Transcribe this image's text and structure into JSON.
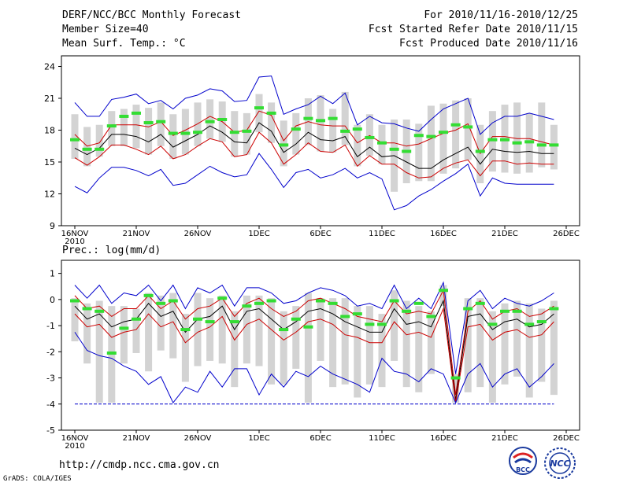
{
  "header": {
    "title": "DERF/NCC/BCC Monthly Forecast",
    "member_size": "Member Size=40",
    "variable": "Mean Surf. Temp.: °C",
    "period": "For 2010/11/16-2010/12/25",
    "start_date": "Fcst Started Refer Date 2010/11/15",
    "produced_date": "Fcst Produced Date 2010/11/16"
  },
  "footer": {
    "url": "http://cmdp.ncc.cma.gov.cn",
    "credit": "GrADS: COLA/IGES",
    "logo_left_text": "BCC",
    "logo_right_text": "NCC"
  },
  "colors": {
    "upper_lower_envelope": "#0000cc",
    "spread_band": "#cc0000",
    "ensemble_mean": "#000000",
    "box": "#d3d3d3",
    "marker": "#33dd33",
    "baseline": "#0000cc"
  },
  "chart_data": [
    {
      "type": "line",
      "title": "Mean Surf. Temp.: °C",
      "ylim": [
        9,
        25
      ],
      "yticks": [
        9,
        12,
        15,
        18,
        21,
        24
      ],
      "xticks": [
        {
          "day": 0,
          "label": "16NOV"
        },
        {
          "day": 5,
          "label": "21NOV"
        },
        {
          "day": 10,
          "label": "26NOV"
        },
        {
          "day": 15,
          "label": "1DEC"
        },
        {
          "day": 20,
          "label": "6DEC"
        },
        {
          "day": 25,
          "label": "11DEC"
        },
        {
          "day": 30,
          "label": "16DEC"
        },
        {
          "day": 35,
          "label": "21DEC"
        },
        {
          "day": 40,
          "label": "26DEC"
        }
      ],
      "year_label": "2010",
      "days": [
        0,
        1,
        2,
        3,
        4,
        5,
        6,
        7,
        8,
        9,
        10,
        11,
        12,
        13,
        14,
        15,
        16,
        17,
        18,
        19,
        20,
        21,
        22,
        23,
        24,
        25,
        26,
        27,
        28,
        29,
        30,
        31,
        32,
        33,
        34,
        35,
        36,
        37,
        38,
        39
      ],
      "series": [
        {
          "name": "max",
          "values": [
            20.6,
            19.3,
            19.3,
            20.9,
            21.1,
            21.4,
            20.5,
            20.8,
            20.0,
            21.0,
            21.3,
            21.9,
            21.7,
            20.7,
            20.8,
            23.0,
            23.1,
            19.5,
            20.0,
            20.4,
            21.2,
            20.5,
            21.5,
            18.5,
            19.3,
            18.7,
            18.6,
            18.2,
            17.9,
            19.0,
            20.0,
            20.5,
            21.0,
            17.6,
            18.7,
            19.3,
            19.3,
            19.6,
            19.3,
            19.0
          ]
        },
        {
          "name": "upper",
          "values": [
            17.6,
            16.5,
            16.8,
            18.5,
            18.5,
            18.5,
            18.3,
            18.8,
            17.5,
            18.0,
            18.6,
            19.3,
            18.8,
            17.8,
            18.0,
            19.8,
            19.4,
            17.0,
            18.4,
            18.8,
            18.5,
            18.4,
            18.4,
            16.8,
            17.5,
            16.8,
            16.8,
            16.5,
            16.7,
            17.2,
            17.7,
            18.0,
            18.6,
            15.8,
            17.4,
            17.4,
            17.2,
            17.2,
            16.9,
            16.6
          ]
        },
        {
          "name": "mean",
          "values": [
            16.3,
            15.7,
            16.3,
            17.6,
            17.6,
            17.4,
            16.9,
            17.6,
            16.4,
            17.0,
            17.6,
            18.4,
            17.8,
            16.9,
            16.8,
            18.7,
            17.9,
            15.9,
            16.7,
            17.8,
            17.1,
            17.0,
            17.4,
            15.5,
            16.4,
            15.5,
            15.6,
            15.0,
            14.4,
            14.4,
            15.2,
            15.8,
            16.4,
            14.8,
            16.2,
            16.0,
            15.9,
            16.0,
            15.8,
            15.8
          ]
        },
        {
          "name": "lower",
          "values": [
            15.4,
            14.7,
            15.5,
            16.6,
            16.6,
            16.2,
            15.7,
            16.5,
            15.3,
            15.7,
            16.5,
            17.2,
            16.9,
            15.5,
            15.7,
            17.8,
            16.8,
            14.8,
            15.7,
            16.8,
            16.0,
            15.9,
            16.6,
            14.6,
            15.6,
            14.8,
            14.8,
            14.0,
            13.5,
            13.6,
            14.4,
            14.9,
            15.2,
            13.7,
            15.1,
            15.1,
            14.8,
            14.9,
            14.8,
            14.8
          ]
        },
        {
          "name": "min",
          "values": [
            12.7,
            12.1,
            13.5,
            14.5,
            14.5,
            14.2,
            13.7,
            14.3,
            12.8,
            13.0,
            13.8,
            14.6,
            14.0,
            13.6,
            13.8,
            15.8,
            14.3,
            12.6,
            14.0,
            14.3,
            13.5,
            13.8,
            14.4,
            13.5,
            14.0,
            13.4,
            10.5,
            10.9,
            11.8,
            12.4,
            13.2,
            13.9,
            14.8,
            11.8,
            13.5,
            13.0,
            12.9,
            12.9,
            12.9,
            12.9
          ]
        }
      ],
      "box_low": [
        15.3,
        14.6,
        15.5,
        16.5,
        16.5,
        16.3,
        15.7,
        16.5,
        15.3,
        15.7,
        16.5,
        17.2,
        16.9,
        15.5,
        15.7,
        17.8,
        16.8,
        14.6,
        15.7,
        16.6,
        16.0,
        15.9,
        16.6,
        14.6,
        15.6,
        14.8,
        12.2,
        13.0,
        13.2,
        13.2,
        13.9,
        14.4,
        15.2,
        13.0,
        14.1,
        14.0,
        13.9,
        14.0,
        14.5,
        14.3
      ],
      "box_high": [
        19.5,
        18.3,
        18.5,
        19.8,
        20.0,
        20.4,
        20.1,
        20.6,
        19.5,
        20.0,
        20.6,
        20.9,
        20.7,
        19.8,
        19.6,
        21.4,
        20.6,
        18.9,
        19.6,
        21.0,
        21.3,
        20.0,
        21.6,
        18.5,
        19.5,
        18.5,
        19.0,
        19.0,
        18.6,
        20.3,
        20.5,
        20.8,
        21.0,
        18.5,
        19.8,
        20.4,
        20.6,
        19.6,
        20.6,
        18.5
      ],
      "markers": [
        17.1,
        16.2,
        16.2,
        18.4,
        19.3,
        19.6,
        18.7,
        18.8,
        17.7,
        17.7,
        17.8,
        18.8,
        19.0,
        17.8,
        17.9,
        20.1,
        19.6,
        16.6,
        18.1,
        19.1,
        18.9,
        19.1,
        17.9,
        18.1,
        17.3,
        16.8,
        16.2,
        16.0,
        17.5,
        17.4,
        17.8,
        18.5,
        18.3,
        16.0,
        17.1,
        17.1,
        16.8,
        16.9,
        16.6,
        16.6
      ]
    },
    {
      "type": "line",
      "title": "Prec.: log(mm/d)",
      "ylim": [
        -5,
        1.5
      ],
      "yticks": [
        -5,
        -4,
        -3,
        -2,
        -1,
        0,
        1
      ],
      "xticks": [
        {
          "day": 0,
          "label": "16NOV"
        },
        {
          "day": 5,
          "label": "21NOV"
        },
        {
          "day": 10,
          "label": "26NOV"
        },
        {
          "day": 15,
          "label": "1DEC"
        },
        {
          "day": 20,
          "label": "6DEC"
        },
        {
          "day": 25,
          "label": "11DEC"
        },
        {
          "day": 30,
          "label": "16DEC"
        },
        {
          "day": 35,
          "label": "21DEC"
        },
        {
          "day": 40,
          "label": "26DEC"
        }
      ],
      "year_label": "2010",
      "days": [
        0,
        1,
        2,
        3,
        4,
        5,
        6,
        7,
        8,
        9,
        10,
        11,
        12,
        13,
        14,
        15,
        16,
        17,
        18,
        19,
        20,
        21,
        22,
        23,
        24,
        25,
        26,
        27,
        28,
        29,
        30,
        31,
        32,
        33,
        34,
        35,
        36,
        37,
        38,
        39
      ],
      "series": [
        {
          "name": "max",
          "values": [
            0.55,
            0.05,
            0.55,
            -0.15,
            0.25,
            0.15,
            0.55,
            -0.05,
            0.55,
            -0.35,
            0.45,
            0.25,
            0.55,
            -0.25,
            0.45,
            0.45,
            0.25,
            -0.15,
            -0.05,
            0.25,
            0.45,
            0.35,
            0.15,
            -0.25,
            -0.15,
            -0.35,
            0.55,
            -0.35,
            0.05,
            -0.35,
            0.65,
            -2.85,
            -0.05,
            0.35,
            -0.35,
            0.05,
            -0.15,
            -0.25,
            -0.05,
            0.25
          ]
        },
        {
          "name": "upper",
          "values": [
            0.15,
            -0.35,
            -0.25,
            -0.65,
            -0.35,
            -0.35,
            0.15,
            -0.35,
            -0.05,
            -0.75,
            -0.35,
            -0.25,
            0.05,
            -0.65,
            -0.15,
            0.05,
            -0.35,
            -0.65,
            -0.45,
            -0.05,
            0.05,
            -0.15,
            -0.35,
            -0.65,
            -0.75,
            -0.85,
            -0.05,
            -0.55,
            -0.45,
            -0.55,
            0.35,
            -3.65,
            -0.45,
            -0.05,
            -0.75,
            -0.45,
            -0.35,
            -0.65,
            -0.55,
            -0.25
          ]
        },
        {
          "name": "mean",
          "values": [
            -0.25,
            -0.75,
            -0.55,
            -1.05,
            -0.85,
            -0.75,
            -0.15,
            -0.65,
            -0.45,
            -1.25,
            -0.75,
            -0.65,
            -0.25,
            -1.15,
            -0.45,
            -0.35,
            -0.75,
            -1.15,
            -0.85,
            -0.45,
            -0.35,
            -0.55,
            -0.85,
            -1.05,
            -1.25,
            -1.25,
            -0.35,
            -0.95,
            -0.85,
            -1.05,
            -0.05,
            -3.85,
            -0.65,
            -0.55,
            -1.15,
            -0.85,
            -0.75,
            -1.05,
            -0.95,
            -0.55
          ]
        },
        {
          "name": "lower",
          "values": [
            -0.55,
            -1.05,
            -0.95,
            -1.45,
            -1.25,
            -1.15,
            -0.55,
            -1.05,
            -0.85,
            -1.65,
            -1.25,
            -1.05,
            -0.65,
            -1.55,
            -0.95,
            -0.75,
            -1.15,
            -1.55,
            -1.25,
            -0.85,
            -0.75,
            -0.95,
            -1.35,
            -1.45,
            -1.65,
            -1.65,
            -0.85,
            -1.35,
            -1.25,
            -1.45,
            -0.35,
            -3.95,
            -1.05,
            -0.95,
            -1.55,
            -1.25,
            -1.15,
            -1.45,
            -1.35,
            -0.85
          ]
        },
        {
          "name": "min",
          "values": [
            -1.25,
            -1.95,
            -2.15,
            -2.25,
            -2.55,
            -2.75,
            -3.25,
            -2.95,
            -3.95,
            -3.35,
            -3.55,
            -2.75,
            -3.35,
            -2.65,
            -2.65,
            -3.65,
            -2.85,
            -3.35,
            -2.75,
            -2.95,
            -2.55,
            -2.85,
            -3.05,
            -3.25,
            -3.55,
            -2.25,
            -2.75,
            -2.85,
            -3.15,
            -2.65,
            -2.85,
            -3.95,
            -2.85,
            -2.45,
            -3.35,
            -2.85,
            -2.65,
            -3.35,
            -2.95,
            -2.45
          ]
        }
      ],
      "box_low": [
        -1.6,
        -2.45,
        -3.95,
        -3.95,
        -2.45,
        -2.05,
        -2.75,
        -1.95,
        -2.25,
        -3.15,
        -2.55,
        -2.35,
        -2.45,
        -3.35,
        -2.45,
        -2.55,
        -3.25,
        -3.25,
        -2.65,
        -3.95,
        -2.35,
        -3.35,
        -3.25,
        -3.75,
        -3.25,
        -3.35,
        -2.35,
        -3.35,
        -3.55,
        -2.85,
        -0.25,
        -3.95,
        -3.55,
        -3.35,
        -3.95,
        -3.25,
        -2.95,
        -3.75,
        -3.15,
        -3.65
      ],
      "box_high": [
        0.05,
        -0.15,
        -0.05,
        -0.25,
        -0.25,
        -0.35,
        0.25,
        0.15,
        0.25,
        -0.55,
        0.25,
        0.05,
        0.15,
        -0.45,
        0.15,
        0.15,
        0.05,
        -0.45,
        -0.25,
        0.25,
        0.05,
        0.05,
        0.05,
        -0.25,
        -0.25,
        -0.55,
        0.35,
        -0.05,
        -0.25,
        -0.45,
        0.55,
        -2.85,
        0.05,
        0.05,
        -0.45,
        -0.15,
        -0.05,
        -0.15,
        -0.35,
        -0.05
      ],
      "markers": [
        -0.05,
        -0.35,
        -0.45,
        -2.05,
        -1.1,
        -0.75,
        0.15,
        -0.15,
        -0.05,
        -1.15,
        -0.75,
        -0.85,
        0.05,
        -0.85,
        -0.25,
        -0.15,
        -0.05,
        -1.15,
        -0.75,
        -1.05,
        -0.05,
        -0.15,
        -0.65,
        -0.55,
        -0.95,
        -0.95,
        -0.05,
        -0.45,
        -0.15,
        -0.65,
        0.35,
        -3.0,
        -0.35,
        -0.15,
        -0.95,
        -0.45,
        -0.45,
        -0.95,
        -0.85,
        -0.35
      ]
    }
  ]
}
